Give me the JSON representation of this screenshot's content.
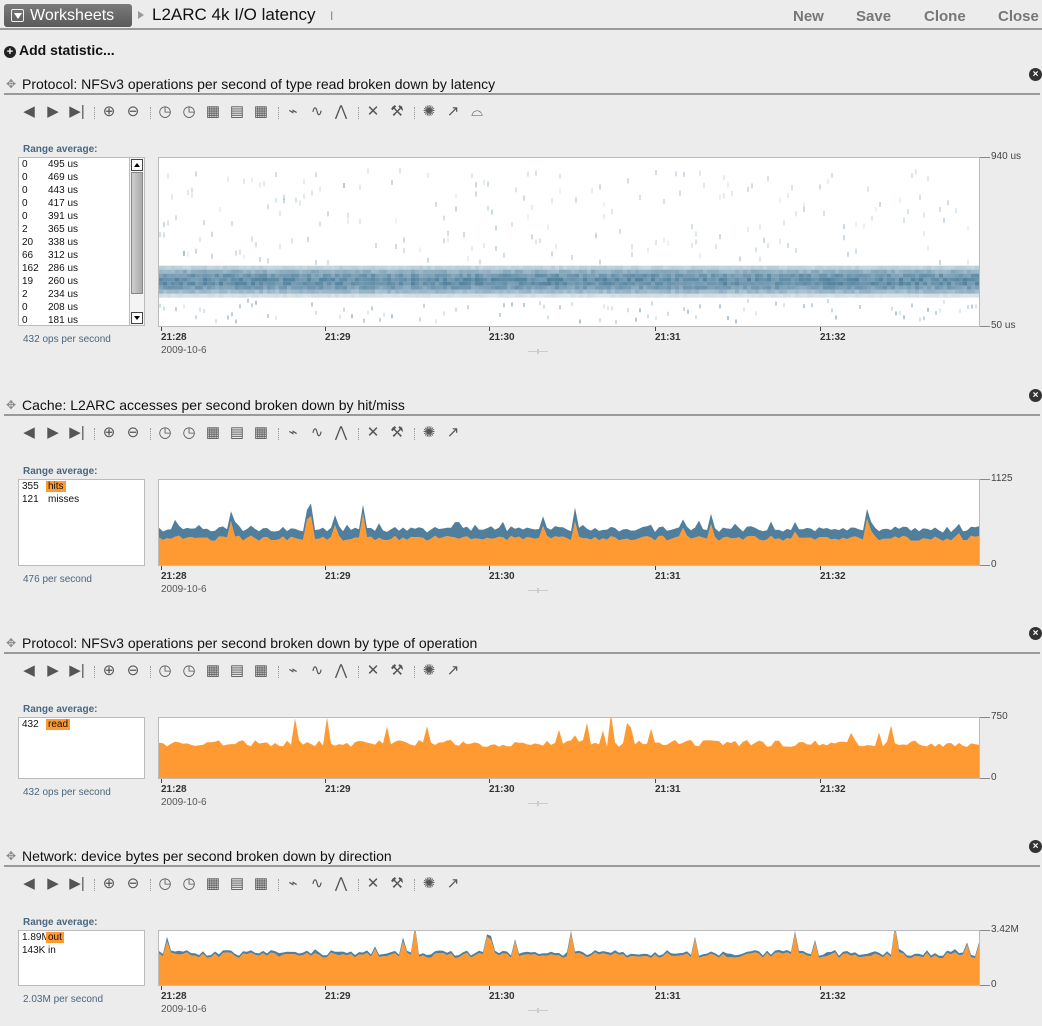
{
  "header": {
    "worksheets_label": "Worksheets",
    "title": "L2ARC 4k I/O latency",
    "actions": [
      "New",
      "Save",
      "Clone",
      "Close"
    ]
  },
  "add_statistic": "Add statistic...",
  "colors": {
    "accent": "#ff9a33",
    "series_dark": "#4f7f9c",
    "panel_bg": "#ececec"
  },
  "range_label": "Range average:",
  "x_labels": [
    "21:28",
    "21:29",
    "21:30",
    "21:31",
    "21:32"
  ],
  "x_date": "2009-10-6",
  "stats": [
    {
      "title": "Protocol: NFSv3 operations per second of type read broken down by latency",
      "rate": "432 ops per second",
      "legend": [
        {
          "value": "0",
          "name": "495 us"
        },
        {
          "value": "0",
          "name": "469 us"
        },
        {
          "value": "0",
          "name": "443 us"
        },
        {
          "value": "0",
          "name": "417 us"
        },
        {
          "value": "0",
          "name": "391 us"
        },
        {
          "value": "2",
          "name": "365 us"
        },
        {
          "value": "20",
          "name": "338 us"
        },
        {
          "value": "66",
          "name": "312 us"
        },
        {
          "value": "162",
          "name": "286 us"
        },
        {
          "value": "19",
          "name": "260 us"
        },
        {
          "value": "2",
          "name": "234 us"
        },
        {
          "value": "0",
          "name": "208 us"
        },
        {
          "value": "0",
          "name": "181 us"
        }
      ],
      "y_max": "940 us",
      "y_min": "50 us",
      "chart_data": {
        "type": "heatmap",
        "y_range": [
          50,
          940
        ],
        "y_unit": "us",
        "dense_band_us": [
          260,
          338
        ]
      }
    },
    {
      "title": "Cache: L2ARC accesses per second broken down by hit/miss",
      "rate": "476 per second",
      "legend": [
        {
          "value": "355",
          "name": "hits",
          "highlight": true
        },
        {
          "value": "121",
          "name": "misses"
        }
      ],
      "y_max": "1125",
      "y_min": "0",
      "chart_data": {
        "type": "area",
        "ylim": [
          0,
          1125
        ],
        "series": [
          {
            "name": "hits",
            "mean": 355,
            "color": "#ff9a33"
          },
          {
            "name": "misses",
            "mean": 121,
            "color": "#4f7f9c"
          }
        ]
      }
    },
    {
      "title": "Protocol: NFSv3 operations per second broken down by type of operation",
      "rate": "432 ops per second",
      "legend": [
        {
          "value": "432",
          "name": "read",
          "highlight": true
        }
      ],
      "y_max": "750",
      "y_min": "0",
      "chart_data": {
        "type": "area",
        "ylim": [
          0,
          750
        ],
        "series": [
          {
            "name": "read",
            "mean": 432,
            "color": "#ff9a33"
          }
        ]
      }
    },
    {
      "title": "Network: device bytes per second broken down by direction",
      "rate": "2.03M per second",
      "legend": [
        {
          "value": "1.89M",
          "name": "out",
          "highlight": true
        },
        {
          "value": "143K",
          "name": "in"
        }
      ],
      "y_max": "3.42M",
      "y_min": "0",
      "chart_data": {
        "type": "area",
        "ylim": [
          0,
          3.42
        ],
        "y_unit": "M",
        "series": [
          {
            "name": "out",
            "mean": 1.89,
            "color": "#ff9a33"
          },
          {
            "name": "in",
            "mean": 0.143,
            "color": "#4f7f9c"
          }
        ]
      }
    }
  ]
}
